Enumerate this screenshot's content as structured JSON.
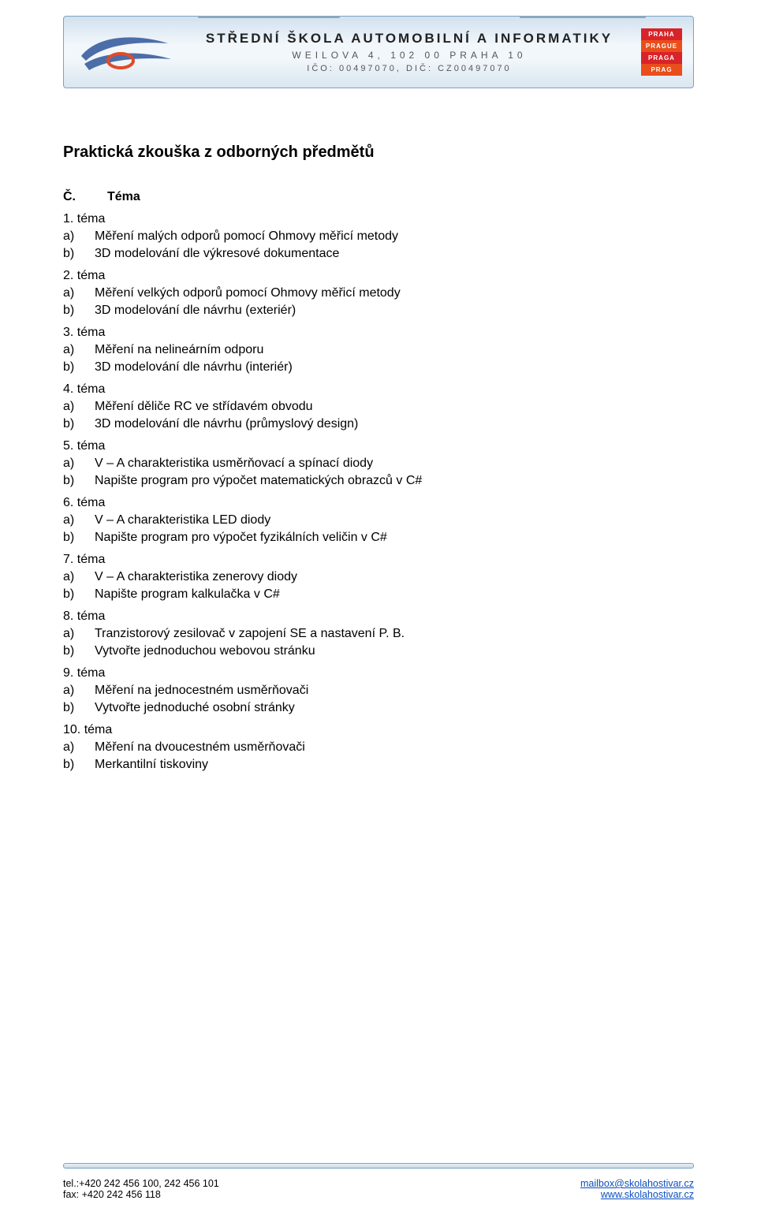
{
  "banner": {
    "school_name": "STŘEDNÍ ŠKOLA AUTOMOBILNÍ A INFORMATIKY",
    "address": "WEILOVA 4, 102 00 PRAHA 10",
    "ids": "IČO: 00497070, DIČ: CZ00497070",
    "badge_lines": [
      "PRAHA",
      "PRAGUE",
      "PRAGA",
      "PRAG"
    ],
    "logo_colors": {
      "swoosh": "#4b6ea8",
      "oval": "#e14a2a"
    }
  },
  "title": "Praktická zkouška z odborných předmětů",
  "header": {
    "col1": "Č.",
    "col2": "Téma"
  },
  "topics": [
    {
      "num": "1. téma",
      "items": [
        {
          "l": "a)",
          "t": "Měření malých odporů pomocí Ohmovy měřicí metody"
        },
        {
          "l": "b)",
          "t": "3D modelování dle výkresové dokumentace"
        }
      ]
    },
    {
      "num": "2. téma",
      "items": [
        {
          "l": "a)",
          "t": "Měření velkých odporů pomocí Ohmovy měřicí metody"
        },
        {
          "l": "b)",
          "t": "3D modelování dle návrhu (exteriér)"
        }
      ]
    },
    {
      "num": "3. téma",
      "items": [
        {
          "l": "a)",
          "t": "Měření na nelineárním odporu"
        },
        {
          "l": "b)",
          "t": "3D modelování dle návrhu (interiér)"
        }
      ]
    },
    {
      "num": "4. téma",
      "items": [
        {
          "l": "a)",
          "t": "Měření děliče RC ve střídavém obvodu"
        },
        {
          "l": "b)",
          "t": "3D modelování dle návrhu (průmyslový design)"
        }
      ]
    },
    {
      "num": "5. téma",
      "items": [
        {
          "l": "a)",
          "t": "V – A charakteristika usměrňovací a spínací diody"
        },
        {
          "l": "b)",
          "t": "Napište program pro výpočet matematických obrazců v C#"
        }
      ]
    },
    {
      "num": "6. téma",
      "items": [
        {
          "l": "a)",
          "t": "V – A charakteristika LED diody"
        },
        {
          "l": "b)",
          "t": "Napište program pro výpočet fyzikálních veličin v C#"
        }
      ]
    },
    {
      "num": "7. téma",
      "items": [
        {
          "l": "a)",
          "t": "V – A charakteristika zenerovy diody"
        },
        {
          "l": "b)",
          "t": "Napište program kalkulačka v C#"
        }
      ]
    },
    {
      "num": "8. téma",
      "items": [
        {
          "l": "a)",
          "t": "Tranzistorový zesilovač v zapojení SE a nastavení P. B."
        },
        {
          "l": "b)",
          "t": "Vytvořte jednoduchou webovou stránku"
        }
      ]
    },
    {
      "num": "9. téma",
      "items": [
        {
          "l": "a)",
          "t": "Měření na jednocestném usměrňovači"
        },
        {
          "l": "b)",
          "t": "Vytvořte jednoduché osobní stránky"
        }
      ]
    },
    {
      "num": "10. téma",
      "items": [
        {
          "l": "a)",
          "t": "Měření na dvoucestném usměrňovači"
        },
        {
          "l": "b)",
          "t": "Merkantilní tiskoviny"
        }
      ]
    }
  ],
  "footer": {
    "tel": "tel.:+420 242 456 100, 242 456 101",
    "fax": "fax: +420 242 456 118",
    "mail": "mailbox@skolahostivar.cz",
    "web": "www.skolahostivar.cz"
  }
}
